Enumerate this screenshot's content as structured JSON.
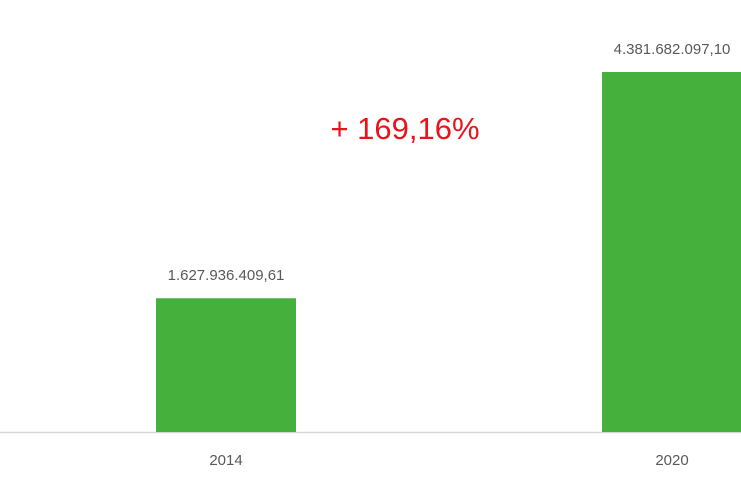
{
  "chart_data": {
    "type": "bar",
    "categories": [
      "2014",
      "2020"
    ],
    "values": [
      1627936409.61,
      4381682097.1
    ],
    "value_labels": [
      "1.627.936.409,61",
      "4.381.682.097,10"
    ],
    "color": "#46b03c",
    "annotation": "+ 169,16%"
  }
}
